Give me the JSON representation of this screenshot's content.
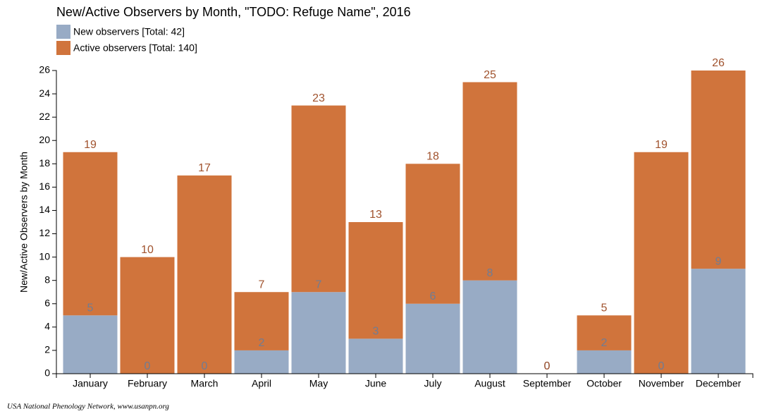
{
  "chart_data": {
    "type": "stacked-bar",
    "title": "New/Active Observers by Month, \"TODO: Refuge Name\", 2016",
    "y_label": "New/Active Observers by Month",
    "footer": "USA National Phenology Network, www.usanpn.org",
    "categories": [
      "January",
      "February",
      "March",
      "April",
      "May",
      "June",
      "July",
      "August",
      "September",
      "October",
      "November",
      "December"
    ],
    "series": [
      {
        "name": "New observers [Total: 42]",
        "color": "#98abc5",
        "label_color": "#6f7c94",
        "values": [
          5,
          0,
          0,
          2,
          7,
          3,
          6,
          8,
          0,
          2,
          0,
          9
        ]
      },
      {
        "name": "Active observers [Total: 140]",
        "color": "#d0743c",
        "values": [
          14,
          10,
          17,
          5,
          16,
          10,
          12,
          17,
          0,
          3,
          19,
          17
        ]
      }
    ],
    "totals": [
      19,
      10,
      17,
      7,
      23,
      13,
      18,
      25,
      0,
      5,
      19,
      26
    ],
    "total_label_color": "#a0522d",
    "ylim": [
      0,
      26
    ],
    "yticks": [
      0,
      2,
      4,
      6,
      8,
      10,
      12,
      14,
      16,
      18,
      20,
      22,
      24,
      26
    ]
  }
}
